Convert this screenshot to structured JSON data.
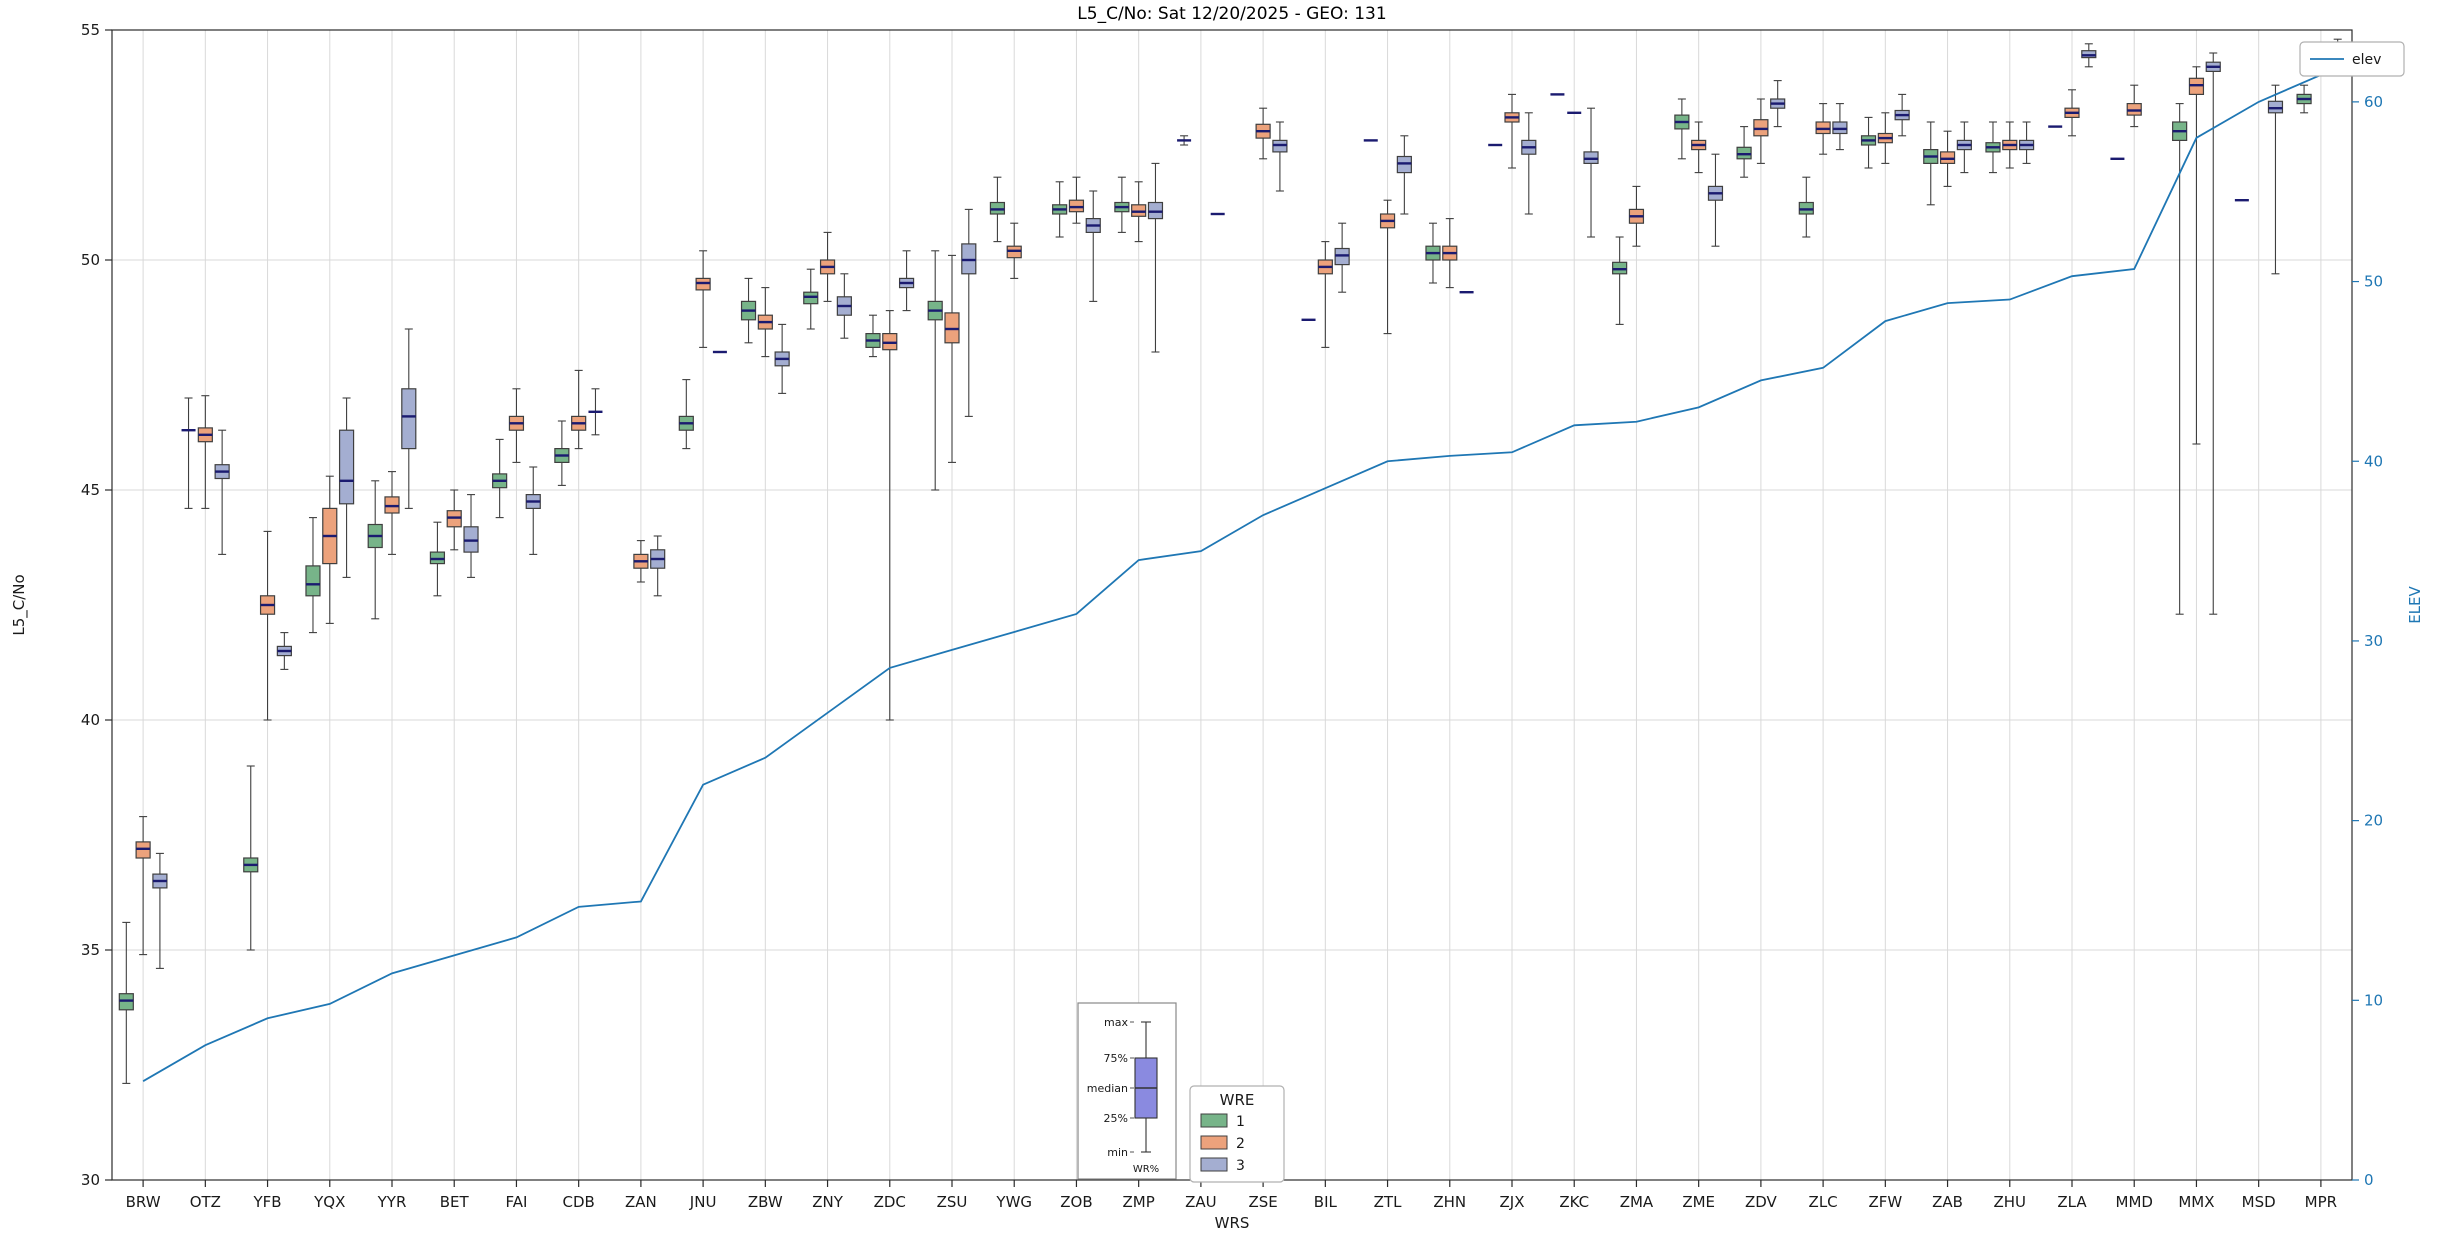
{
  "chart_data": {
    "type": "boxplot+line",
    "title": "L5_C/No: Sat 12/20/2025 - GEO: 131",
    "xlabel": "WRS",
    "ylabel": "L5_C/No",
    "y2label": "ELEV",
    "ylim": [
      30,
      55
    ],
    "y2lim": [
      0,
      64
    ],
    "yticks": [
      30,
      35,
      40,
      45,
      50,
      55
    ],
    "y2ticks": [
      0,
      10,
      20,
      30,
      40,
      50,
      60
    ],
    "grid": true,
    "categories": [
      "BRW",
      "OTZ",
      "YFB",
      "YQX",
      "YYR",
      "BET",
      "FAI",
      "CDB",
      "ZAN",
      "JNU",
      "ZBW",
      "ZNY",
      "ZDC",
      "ZSU",
      "YWG",
      "ZOB",
      "ZMP",
      "ZAU",
      "ZSE",
      "BIL",
      "ZTL",
      "ZHN",
      "ZJX",
      "ZKC",
      "ZMA",
      "ZME",
      "ZDV",
      "ZLC",
      "ZFW",
      "ZAB",
      "ZHU",
      "ZLA",
      "MMD",
      "MMX",
      "MSD",
      "MPR"
    ],
    "series_names": [
      "1",
      "2",
      "3"
    ],
    "legend": {
      "box_title": "WRE",
      "entries": [
        "1",
        "2",
        "3"
      ],
      "line_label": "elev"
    },
    "inset": {
      "labels": [
        "max",
        "75%",
        "median",
        "25%",
        "min"
      ],
      "xlabel": "WR%"
    },
    "colors": {
      "series": {
        "1": "#77b489",
        "2": "#eca27c",
        "3": "#a4aed1"
      },
      "median": "#1b1b70",
      "box_edge": "#3f3f3f",
      "elev_line": "#1f77b4",
      "right_axis": "#1f77b4",
      "grid": "#d9d9d9",
      "spine": "#2b2b2b",
      "inset_box": "#8a8ae0"
    },
    "boxes": {
      "1": [
        [
          32.1,
          33.7,
          33.9,
          34.05,
          35.6
        ],
        [
          44.6,
          46.3,
          46.3,
          46.3,
          47.0
        ],
        [
          35.0,
          36.7,
          36.85,
          37.0,
          39.0
        ],
        [
          41.9,
          42.7,
          42.95,
          43.35,
          44.4
        ],
        [
          42.2,
          43.75,
          44.0,
          44.25,
          45.2
        ],
        [
          42.7,
          43.4,
          43.5,
          43.65,
          44.3
        ],
        [
          44.4,
          45.05,
          45.2,
          45.35,
          46.1
        ],
        [
          45.1,
          45.6,
          45.75,
          45.9,
          46.5
        ],
        null,
        [
          45.9,
          46.3,
          46.45,
          46.6,
          47.4
        ],
        [
          48.2,
          48.7,
          48.9,
          49.1,
          49.6
        ],
        [
          48.5,
          49.05,
          49.2,
          49.3,
          49.8
        ],
        [
          47.9,
          48.1,
          48.25,
          48.4,
          48.8
        ],
        [
          45.0,
          48.7,
          48.9,
          49.1,
          50.2
        ],
        [
          50.4,
          51.0,
          51.1,
          51.25,
          51.8
        ],
        [
          50.5,
          51.0,
          51.1,
          51.2,
          51.7
        ],
        [
          50.6,
          51.05,
          51.15,
          51.25,
          51.8
        ],
        [
          52.5,
          52.6,
          52.6,
          52.6,
          52.7
        ],
        null,
        [
          48.7,
          48.7,
          48.7,
          48.7,
          48.7
        ],
        [
          52.6,
          52.6,
          52.6,
          52.6,
          52.6
        ],
        [
          49.5,
          50.0,
          50.15,
          50.3,
          50.8
        ],
        [
          52.5,
          52.5,
          52.5,
          52.5,
          52.5
        ],
        [
          53.6,
          53.6,
          53.6,
          53.6,
          53.6
        ],
        [
          48.6,
          49.7,
          49.8,
          49.95,
          50.5
        ],
        [
          52.2,
          52.85,
          53.0,
          53.15,
          53.5
        ],
        [
          51.8,
          52.2,
          52.3,
          52.45,
          52.9
        ],
        [
          50.5,
          51.0,
          51.1,
          51.25,
          51.8
        ],
        [
          52.0,
          52.5,
          52.6,
          52.7,
          53.1
        ],
        [
          51.2,
          52.1,
          52.25,
          52.4,
          53.0
        ],
        [
          51.9,
          52.35,
          52.45,
          52.55,
          53.0
        ],
        [
          52.9,
          52.9,
          52.9,
          52.9,
          52.9
        ],
        [
          52.2,
          52.2,
          52.2,
          52.2,
          52.2
        ],
        [
          42.3,
          52.6,
          52.8,
          53.0,
          53.4
        ],
        [
          51.3,
          51.3,
          51.3,
          51.3,
          51.3
        ],
        [
          53.2,
          53.4,
          53.5,
          53.6,
          53.8
        ]
      ],
      "2": [
        [
          34.9,
          37.0,
          37.2,
          37.35,
          37.9
        ],
        [
          44.6,
          46.05,
          46.2,
          46.35,
          47.05
        ],
        [
          40.0,
          42.3,
          42.5,
          42.7,
          44.1
        ],
        [
          42.1,
          43.4,
          44.0,
          44.6,
          45.3
        ],
        [
          43.6,
          44.5,
          44.65,
          44.85,
          45.4
        ],
        [
          43.7,
          44.2,
          44.4,
          44.55,
          45.0
        ],
        [
          45.6,
          46.3,
          46.45,
          46.6,
          47.2
        ],
        [
          45.9,
          46.3,
          46.45,
          46.6,
          47.6
        ],
        [
          43.0,
          43.3,
          43.45,
          43.6,
          43.9
        ],
        [
          48.1,
          49.35,
          49.5,
          49.6,
          50.2
        ],
        [
          47.9,
          48.5,
          48.65,
          48.8,
          49.4
        ],
        [
          49.1,
          49.7,
          49.85,
          50.0,
          50.6
        ],
        [
          40.0,
          48.05,
          48.2,
          48.4,
          48.9
        ],
        [
          45.6,
          48.2,
          48.5,
          48.85,
          50.1
        ],
        [
          49.6,
          50.05,
          50.2,
          50.3,
          50.8
        ],
        [
          50.8,
          51.05,
          51.15,
          51.3,
          51.8
        ],
        [
          50.4,
          50.95,
          51.05,
          51.2,
          51.7
        ],
        null,
        [
          52.2,
          52.65,
          52.8,
          52.95,
          53.3
        ],
        [
          48.1,
          49.7,
          49.85,
          50.0,
          50.4
        ],
        [
          48.4,
          50.7,
          50.85,
          51.0,
          51.3
        ],
        [
          49.4,
          50.0,
          50.15,
          50.3,
          50.9
        ],
        [
          52.0,
          53.0,
          53.1,
          53.2,
          53.6
        ],
        [
          53.2,
          53.2,
          53.2,
          53.2,
          53.2
        ],
        [
          50.3,
          50.8,
          50.95,
          51.1,
          51.6
        ],
        [
          51.9,
          52.4,
          52.5,
          52.6,
          53.0
        ],
        [
          52.1,
          52.7,
          52.85,
          53.05,
          53.5
        ],
        [
          52.3,
          52.75,
          52.85,
          53.0,
          53.4
        ],
        [
          52.1,
          52.55,
          52.65,
          52.75,
          53.2
        ],
        [
          51.6,
          52.1,
          52.2,
          52.35,
          52.8
        ],
        [
          52.0,
          52.4,
          52.5,
          52.6,
          53.0
        ],
        [
          52.7,
          53.1,
          53.2,
          53.3,
          53.7
        ],
        [
          52.9,
          53.15,
          53.25,
          53.4,
          53.8
        ],
        [
          46.0,
          53.6,
          53.8,
          53.95,
          54.2
        ],
        null,
        null
      ],
      "3": [
        [
          34.6,
          36.35,
          36.5,
          36.65,
          37.1
        ],
        [
          43.6,
          45.25,
          45.4,
          45.55,
          46.3
        ],
        [
          41.1,
          41.4,
          41.5,
          41.6,
          41.9
        ],
        [
          43.1,
          44.7,
          45.2,
          46.3,
          47.0
        ],
        [
          44.6,
          45.9,
          46.6,
          47.2,
          48.5
        ],
        [
          43.1,
          43.65,
          43.9,
          44.2,
          44.9
        ],
        [
          43.6,
          44.6,
          44.75,
          44.9,
          45.5
        ],
        [
          46.2,
          46.7,
          46.7,
          46.7,
          47.2
        ],
        [
          42.7,
          43.3,
          43.5,
          43.7,
          44.0
        ],
        [
          48.0,
          48.0,
          48.0,
          48.0,
          48.0
        ],
        [
          47.1,
          47.7,
          47.85,
          48.0,
          48.6
        ],
        [
          48.3,
          48.8,
          49.0,
          49.2,
          49.7
        ],
        [
          48.9,
          49.4,
          49.5,
          49.6,
          50.2
        ],
        [
          46.6,
          49.7,
          50.0,
          50.35,
          51.1
        ],
        null,
        [
          49.1,
          50.6,
          50.75,
          50.9,
          51.5
        ],
        [
          48.0,
          50.9,
          51.05,
          51.25,
          52.1
        ],
        [
          51.0,
          51.0,
          51.0,
          51.0,
          51.0
        ],
        [
          51.5,
          52.35,
          52.5,
          52.6,
          53.0
        ],
        [
          49.3,
          49.9,
          50.1,
          50.25,
          50.8
        ],
        [
          51.0,
          51.9,
          52.1,
          52.25,
          52.7
        ],
        [
          49.3,
          49.3,
          49.3,
          49.3,
          49.3
        ],
        [
          51.0,
          52.3,
          52.45,
          52.6,
          53.2
        ],
        [
          50.5,
          52.1,
          52.2,
          52.35,
          53.3
        ],
        null,
        [
          50.3,
          51.3,
          51.45,
          51.6,
          52.3
        ],
        [
          52.9,
          53.3,
          53.4,
          53.5,
          53.9
        ],
        [
          52.4,
          52.75,
          52.85,
          53.0,
          53.4
        ],
        [
          52.7,
          53.05,
          53.15,
          53.25,
          53.6
        ],
        [
          51.9,
          52.4,
          52.5,
          52.6,
          53.0
        ],
        [
          52.1,
          52.4,
          52.5,
          52.6,
          53.0
        ],
        [
          54.2,
          54.4,
          54.45,
          54.55,
          54.7
        ],
        null,
        [
          42.3,
          54.1,
          54.2,
          54.3,
          54.5
        ],
        [
          49.7,
          53.2,
          53.3,
          53.45,
          53.8
        ],
        [
          54.2,
          54.4,
          54.5,
          54.6,
          54.8
        ]
      ]
    },
    "elev": [
      5.5,
      7.5,
      9.0,
      9.8,
      11.5,
      12.5,
      13.5,
      15.2,
      15.5,
      22.0,
      23.5,
      26.0,
      28.5,
      29.5,
      30.5,
      31.5,
      34.5,
      35.0,
      37.0,
      38.5,
      40.0,
      40.3,
      40.5,
      42.0,
      42.2,
      43.0,
      44.5,
      45.2,
      47.8,
      48.8,
      49.0,
      50.3,
      50.7,
      58.0,
      60.0,
      61.5
    ]
  }
}
